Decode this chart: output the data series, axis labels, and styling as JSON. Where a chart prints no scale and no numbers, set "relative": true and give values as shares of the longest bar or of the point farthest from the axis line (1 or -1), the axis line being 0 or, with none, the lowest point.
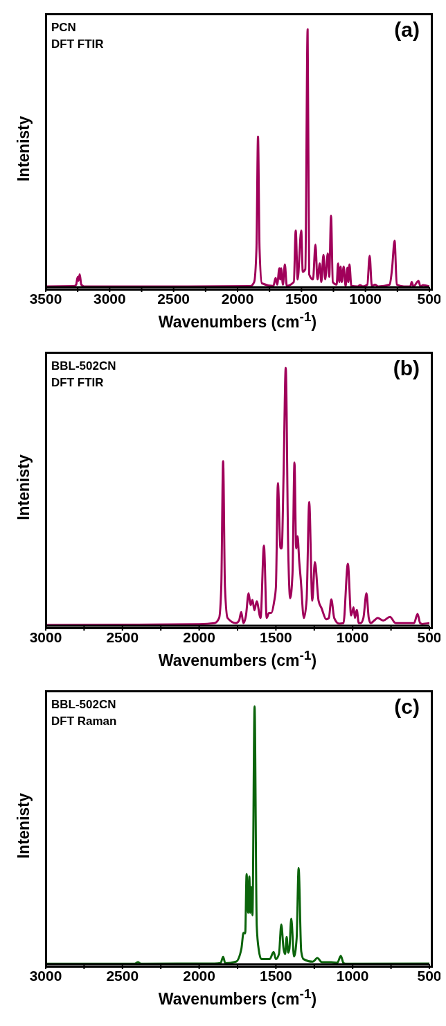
{
  "chart_data": [
    {
      "type": "line",
      "relative": true,
      "xlabel": "Wavenumbers (cm$^{-1}$)",
      "ylabel": "Intenisty",
      "annotations": [
        "PCN",
        "DFT FTIR",
        "(a)"
      ],
      "xlim": [
        3500,
        500
      ],
      "xticks": [
        3500,
        {
          "value": 3250,
          "label": null
        },
        3000,
        {
          "value": 2750,
          "label": null
        },
        2500,
        {
          "value": 2250,
          "label": null
        },
        2000,
        {
          "value": 1750,
          "label": null
        },
        1500,
        {
          "value": 1250,
          "label": null
        },
        1000,
        {
          "value": 750,
          "label": null
        },
        500
      ],
      "marker": "none",
      "series": [
        {
          "color": "#a0005a",
          "x": [
            3500,
            3280,
            3262,
            3250,
            3244,
            3234,
            3222,
            3200,
            2400,
            1900,
            1870,
            1852,
            1840,
            1828,
            1810,
            1720,
            1702,
            1690,
            1673,
            1666,
            1659,
            1645,
            1630,
            1615,
            1560,
            1545,
            1530,
            1502,
            1490,
            1470,
            1452,
            1440,
            1410,
            1391,
            1375,
            1357,
            1345,
            1328,
            1315,
            1294,
            1283,
            1269,
            1255,
            1225,
            1214,
            1204,
            1194,
            1185,
            1170,
            1155,
            1141,
            1133,
            1125,
            1110,
            1060,
            1042,
            1020,
            985,
            967,
            950,
            924,
            900,
            810,
            792,
            772,
            755,
            700,
            650,
            638,
            625,
            585,
            570,
            549,
            500
          ],
          "values": [
            0.003,
            0.004,
            0.01,
            0.04,
            0.025,
            0.05,
            0.01,
            0.003,
            0.003,
            0.004,
            0.02,
            0.15,
            0.584,
            0.15,
            0.015,
            0.005,
            0.036,
            0.01,
            0.073,
            0.03,
            0.073,
            0.01,
            0.088,
            0.005,
            0.02,
            0.22,
            0.03,
            0.22,
            0.06,
            0.07,
            1.0,
            0.05,
            0.03,
            0.165,
            0.03,
            0.092,
            0.02,
            0.126,
            0.03,
            0.131,
            0.04,
            0.277,
            0.02,
            0.01,
            0.092,
            0.02,
            0.08,
            0.02,
            0.08,
            0.005,
            0.075,
            0.02,
            0.088,
            0.005,
            0.003,
            0.008,
            0.003,
            0.01,
            0.122,
            0.005,
            0.01,
            0.003,
            0.01,
            0.071,
            0.18,
            0.01,
            0.003,
            0.003,
            0.02,
            0.003,
            0.024,
            0.003,
            0.008,
            0.003
          ]
        }
      ]
    },
    {
      "type": "line",
      "relative": true,
      "xlabel": "Wavenumbers (cm$^{-1}$)",
      "ylabel": "Intenisty",
      "annotations": [
        "BBL-502CN",
        "DFT FTIR",
        "(b)"
      ],
      "xlim": [
        3000,
        500
      ],
      "xticks": [
        3000,
        {
          "value": 2750,
          "label": null
        },
        2500,
        {
          "value": 2250,
          "label": null
        },
        2000,
        {
          "value": 1750,
          "label": null
        },
        1500,
        {
          "value": 1250,
          "label": null
        },
        1000,
        {
          "value": 750,
          "label": null
        },
        500
      ],
      "marker": "none",
      "series": [
        {
          "color": "#a0005a",
          "x": [
            3000,
            2400,
            2000,
            1900,
            1870,
            1856,
            1844,
            1832,
            1815,
            1760,
            1740,
            1726,
            1712,
            1695,
            1678,
            1665,
            1653,
            1640,
            1625,
            1600,
            1578,
            1560,
            1545,
            1530,
            1512,
            1500,
            1487,
            1470,
            1462,
            1450,
            1436,
            1420,
            1407,
            1392,
            1379,
            1368,
            1359,
            1348,
            1338,
            1318,
            1300,
            1283,
            1263,
            1246,
            1222,
            1202,
            1172,
            1155,
            1139,
            1120,
            1089,
            1060,
            1031,
            1010,
            994,
            985,
            973,
            960,
            948,
            930,
            910,
            895,
            882,
            860,
            837,
            800,
            757,
            720,
            676,
            600,
            577,
            560,
            547,
            500
          ],
          "values": [
            0.003,
            0.004,
            0.006,
            0.01,
            0.03,
            0.15,
            0.638,
            0.15,
            0.03,
            0.01,
            0.02,
            0.053,
            0.01,
            0.04,
            0.126,
            0.08,
            0.1,
            0.06,
            0.095,
            0.03,
            0.311,
            0.03,
            0.05,
            0.05,
            0.092,
            0.15,
            0.553,
            0.3,
            0.3,
            0.587,
            1.0,
            0.3,
            0.107,
            0.2,
            0.633,
            0.3,
            0.347,
            0.25,
            0.179,
            0.03,
            0.1,
            0.48,
            0.097,
            0.247,
            0.097,
            0.067,
            0.025,
            0.03,
            0.102,
            0.03,
            0.008,
            0.01,
            0.24,
            0.04,
            0.071,
            0.03,
            0.061,
            0.01,
            0.01,
            0.03,
            0.126,
            0.03,
            0.01,
            0.02,
            0.03,
            0.02,
            0.034,
            0.01,
            0.01,
            0.01,
            0.046,
            0.01,
            0.007,
            0.01
          ]
        }
      ]
    },
    {
      "type": "line",
      "relative": true,
      "xlabel": "Wavenumbers (cm$^{-1}$)",
      "ylabel": "Intenisty",
      "annotations": [
        "BBL-502CN",
        "DFT Raman",
        "(c)"
      ],
      "xlim": [
        3000,
        500
      ],
      "xticks": [
        3000,
        {
          "value": 2750,
          "label": null
        },
        2500,
        {
          "value": 2250,
          "label": null
        },
        2000,
        {
          "value": 1750,
          "label": null
        },
        1500,
        {
          "value": 1250,
          "label": null
        },
        1000,
        {
          "value": 750,
          "label": null
        },
        500
      ],
      "marker": "none",
      "series": [
        {
          "color": "#0b640b",
          "x": [
            3000,
            2420,
            2399,
            2380,
            1900,
            1860,
            1844,
            1830,
            1760,
            1725,
            1711,
            1700,
            1691,
            1681,
            1673,
            1667,
            1661,
            1653,
            1639,
            1625,
            1611,
            1595,
            1578,
            1540,
            1515,
            1500,
            1480,
            1465,
            1450,
            1440,
            1430,
            1420,
            1412,
            1400,
            1382,
            1365,
            1352,
            1335,
            1320,
            1260,
            1230,
            1200,
            1139,
            1100,
            1077,
            1060,
            1047,
            500
          ],
          "values": [
            0.002,
            0.002,
            0.008,
            0.002,
            0.003,
            0.005,
            0.029,
            0.004,
            0.01,
            0.06,
            0.122,
            0.12,
            0.35,
            0.2,
            0.34,
            0.2,
            0.3,
            0.19,
            1.0,
            0.15,
            0.053,
            0.02,
            0.02,
            0.02,
            0.048,
            0.02,
            0.04,
            0.154,
            0.06,
            0.04,
            0.106,
            0.045,
            0.06,
            0.177,
            0.03,
            0.1,
            0.373,
            0.05,
            0.02,
            0.01,
            0.024,
            0.008,
            0.008,
            0.006,
            0.032,
            0.005,
            0.002,
            0.003
          ]
        }
      ]
    }
  ]
}
